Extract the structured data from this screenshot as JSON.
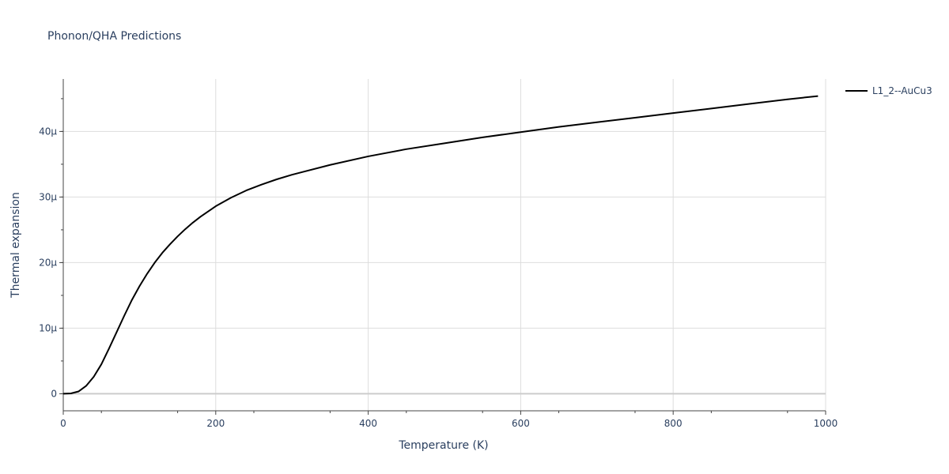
{
  "chart_data": {
    "type": "line",
    "title": "Phonon/QHA Predictions",
    "xlabel": "Temperature (K)",
    "ylabel": "Thermal expansion",
    "xlim": [
      0,
      1000
    ],
    "ylim": [
      -2.6e-06,
      4.8e-05
    ],
    "xticks": [
      0,
      200,
      400,
      600,
      800,
      1000
    ],
    "xtick_labels": [
      "0",
      "200",
      "400",
      "600",
      "800",
      "1000"
    ],
    "yticks": [
      0,
      1e-05,
      2e-05,
      3e-05,
      4e-05
    ],
    "ytick_labels": [
      "0",
      "10µ",
      "20µ",
      "30µ",
      "40µ"
    ],
    "grid": true,
    "legend_position": "top-right",
    "line_color": "#000000",
    "series": [
      {
        "name": "L1_2--AuCu3",
        "x": [
          0,
          10,
          20,
          30,
          40,
          50,
          60,
          70,
          80,
          90,
          100,
          110,
          120,
          130,
          140,
          150,
          160,
          170,
          180,
          190,
          200,
          220,
          240,
          260,
          280,
          300,
          350,
          400,
          450,
          500,
          550,
          600,
          650,
          700,
          750,
          800,
          850,
          900,
          950,
          990
        ],
        "y": [
          0,
          5e-08,
          3.5e-07,
          1.2e-06,
          2.6e-06,
          4.5e-06,
          6.9e-06,
          9.4e-06,
          1.19e-05,
          1.43e-05,
          1.64e-05,
          1.83e-05,
          2e-05,
          2.15e-05,
          2.28e-05,
          2.4e-05,
          2.51e-05,
          2.61e-05,
          2.7e-05,
          2.78e-05,
          2.86e-05,
          2.99e-05,
          3.1e-05,
          3.19e-05,
          3.27e-05,
          3.34e-05,
          3.49e-05,
          3.62e-05,
          3.73e-05,
          3.82e-05,
          3.91e-05,
          3.99e-05,
          4.07e-05,
          4.14e-05,
          4.21e-05,
          4.28e-05,
          4.35e-05,
          4.42e-05,
          4.49e-05,
          4.54e-05
        ]
      }
    ]
  }
}
